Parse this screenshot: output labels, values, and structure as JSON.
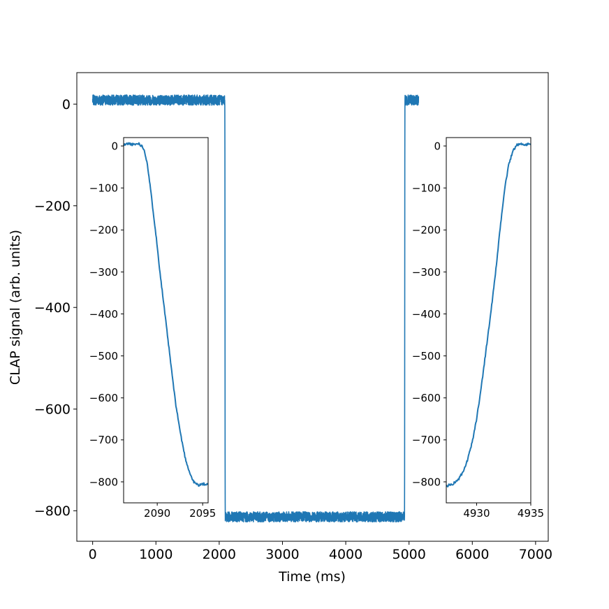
{
  "chart_data": [
    {
      "id": "main",
      "type": "line",
      "xlabel": "Time (ms)",
      "ylabel": "CLAP signal (arb. units)",
      "xlim": [
        -250,
        7200
      ],
      "ylim": [
        -860,
        62
      ],
      "xticks": [
        0,
        1000,
        2000,
        3000,
        4000,
        5000,
        6000,
        7000
      ],
      "yticks": [
        0,
        -200,
        -400,
        -600,
        -800
      ],
      "xtick_labels": [
        "0",
        "1000",
        "2000",
        "3000",
        "4000",
        "5000",
        "6000",
        "7000"
      ],
      "ytick_labels": [
        "0",
        "−200",
        "−400",
        "−600",
        "−800"
      ],
      "color": "#1f77b4",
      "series": [
        {
          "x": [
            0,
            2080,
            2089,
            2091,
            2092,
            2093,
            2094,
            2096,
            2100,
            4920,
            4929,
            4931,
            4932,
            4933,
            4934,
            4936,
            5150
          ],
          "y": [
            8,
            8,
            5,
            -150,
            -430,
            -640,
            -760,
            -810,
            -812,
            -812,
            -808,
            -700,
            -420,
            -160,
            -20,
            8,
            8
          ],
          "noise_amplitude": 10
        }
      ]
    },
    {
      "id": "inset-left",
      "type": "line",
      "xlim": [
        2086.3,
        2095.6
      ],
      "ylim": [
        -850,
        20
      ],
      "xticks": [
        2090,
        2095
      ],
      "yticks": [
        0,
        -100,
        -200,
        -300,
        -400,
        -500,
        -600,
        -700,
        -800
      ],
      "xtick_labels": [
        "2090",
        "2095"
      ],
      "ytick_labels": [
        "0",
        "−100",
        "−200",
        "−300",
        "−400",
        "−500",
        "−600",
        "−700",
        "−800"
      ],
      "color": "#1f77b4",
      "series": [
        {
          "x": [
            2086.3,
            2086.8,
            2087.4,
            2088.0,
            2088.5,
            2088.9,
            2089.3,
            2089.8,
            2090.3,
            2090.9,
            2091.5,
            2092.0,
            2092.6,
            2093.1,
            2093.6,
            2094.0,
            2094.3,
            2094.6,
            2095.0,
            2095.6
          ],
          "y": [
            2,
            6,
            3,
            6,
            -5,
            -40,
            -110,
            -200,
            -300,
            -410,
            -520,
            -610,
            -690,
            -745,
            -780,
            -800,
            -805,
            -808,
            -805,
            -807
          ],
          "noise_amplitude": 3
        }
      ]
    },
    {
      "id": "inset-right",
      "type": "line",
      "xlim": [
        4927.2,
        4935
      ],
      "ylim": [
        -850,
        20
      ],
      "xticks": [
        4930,
        4935
      ],
      "yticks": [
        0,
        -100,
        -200,
        -300,
        -400,
        -500,
        -600,
        -700,
        -800
      ],
      "xtick_labels": [
        "4930",
        "4935"
      ],
      "ytick_labels": [
        "0",
        "−100",
        "−200",
        "−300",
        "−400",
        "−500",
        "−600",
        "−700",
        "−800"
      ],
      "color": "#1f77b4",
      "series": [
        {
          "x": [
            4927.2,
            4927.8,
            4928.3,
            4928.8,
            4929.2,
            4929.6,
            4930.0,
            4930.4,
            4930.8,
            4931.3,
            4931.8,
            4932.2,
            4932.6,
            4933.0,
            4933.4,
            4933.7,
            4934.0,
            4934.4,
            4935.0
          ],
          "y": [
            -810,
            -805,
            -795,
            -775,
            -745,
            -705,
            -650,
            -580,
            -500,
            -400,
            -290,
            -190,
            -100,
            -40,
            -10,
            3,
            5,
            2,
            6
          ],
          "noise_amplitude": 3
        }
      ]
    }
  ]
}
